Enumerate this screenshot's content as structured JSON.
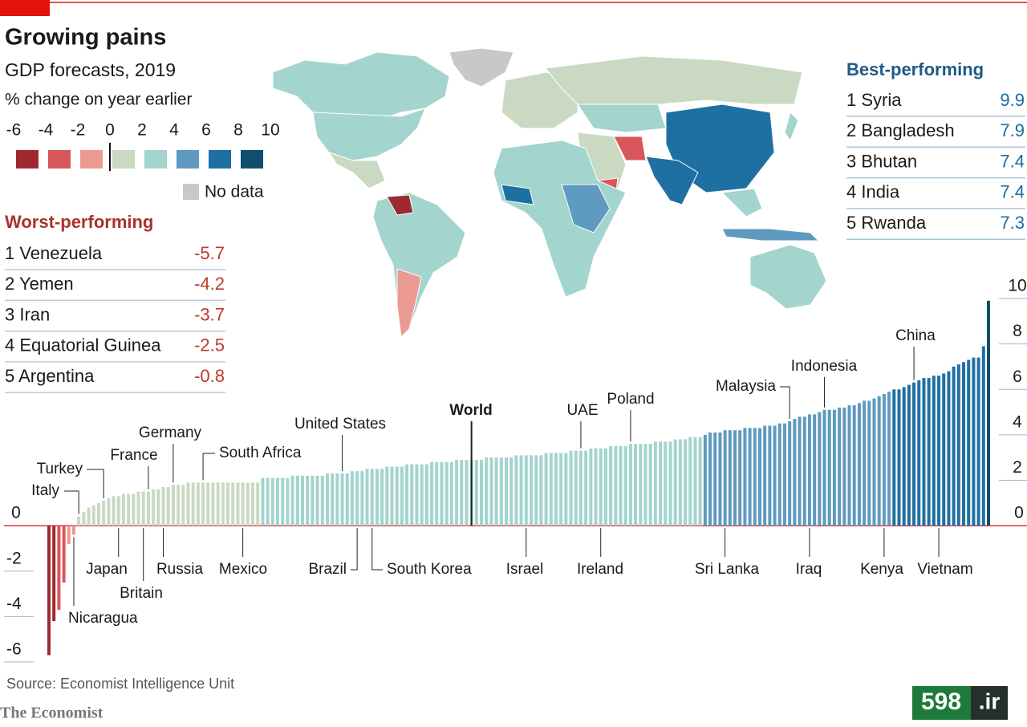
{
  "chart_data": {
    "type": "bar",
    "title": "Growing pains",
    "subtitle": "GDP forecasts, 2019",
    "unit": "% change on year earlier",
    "color_scale": {
      "breaks": [
        -6,
        -4,
        -2,
        0,
        2,
        4,
        6,
        8,
        10
      ],
      "colors": [
        "#9e2a2f",
        "#d9575b",
        "#eb9a92",
        "#c9d9c2",
        "#a3d4cd",
        "#5f9ac0",
        "#1e70a2",
        "#0f4e6d"
      ]
    },
    "no_data": {
      "label": "No data",
      "color": "#c8c8c8"
    },
    "worst": {
      "title": "Worst-performing",
      "color": "#a8322d",
      "rows": [
        {
          "name": "1 Venezuela",
          "value": -5.7
        },
        {
          "name": "2 Yemen",
          "value": -4.2
        },
        {
          "name": "3 Iran",
          "value": -3.7
        },
        {
          "name": "4 Equatorial Guinea",
          "value": -2.5
        },
        {
          "name": "5 Argentina",
          "value": -0.8
        }
      ]
    },
    "best": {
      "title": "Best-performing",
      "color": "#1d5a87",
      "rows": [
        {
          "name": "1 Syria",
          "value": 9.9
        },
        {
          "name": "2 Bangladesh",
          "value": 7.9
        },
        {
          "name": "3 Bhutan",
          "value": 7.4
        },
        {
          "name": "4 India",
          "value": 7.4
        },
        {
          "name": "5 Rwanda",
          "value": 7.3
        }
      ]
    },
    "categories": [
      null,
      null,
      null,
      null,
      null,
      "Nicaragua",
      "Italy",
      null,
      null,
      null,
      null,
      "Turkey",
      null,
      null,
      "Japan",
      null,
      null,
      null,
      null,
      "Britain",
      "France",
      null,
      null,
      "Russia",
      null,
      "Germany",
      null,
      null,
      null,
      null,
      null,
      "South Africa",
      null,
      null,
      null,
      null,
      null,
      null,
      null,
      "Mexico",
      null,
      null,
      null,
      null,
      null,
      null,
      null,
      null,
      null,
      null,
      null,
      null,
      null,
      null,
      null,
      null,
      null,
      null,
      null,
      "United States",
      null,
      null,
      "Brazil",
      null,
      null,
      "South Korea",
      null,
      null,
      null,
      null,
      null,
      null,
      null,
      null,
      null,
      null,
      null,
      null,
      null,
      null,
      null,
      null,
      null,
      null,
      null,
      "World",
      null,
      null,
      null,
      null,
      null,
      null,
      null,
      null,
      null,
      null,
      "Israel",
      null,
      null,
      null,
      null,
      null,
      null,
      null,
      null,
      null,
      null,
      "UAE",
      null,
      null,
      null,
      "Ireland",
      null,
      null,
      null,
      null,
      null,
      "Poland",
      null,
      null,
      null,
      null,
      null,
      null,
      null,
      null,
      null,
      null,
      null,
      null,
      null,
      null,
      null,
      null,
      null,
      null,
      "Sri Lanka",
      null,
      null,
      null,
      null,
      null,
      null,
      null,
      null,
      null,
      null,
      null,
      null,
      "Malaysia",
      null,
      null,
      null,
      "Iraq",
      null,
      null,
      "Indonesia",
      null,
      null,
      null,
      null,
      null,
      null,
      null,
      null,
      null,
      null,
      null,
      "Kenya",
      null,
      null,
      null,
      null,
      null,
      "China",
      null,
      null,
      null,
      null,
      "Vietnam",
      null,
      null,
      null,
      null,
      null,
      null,
      null,
      null,
      null,
      null
    ],
    "values": [
      -5.7,
      -4.2,
      -3.7,
      -2.5,
      -0.8,
      -0.4,
      0.4,
      0.6,
      0.8,
      0.9,
      1.0,
      1.1,
      1.2,
      1.3,
      1.3,
      1.4,
      1.4,
      1.4,
      1.5,
      1.5,
      1.5,
      1.6,
      1.6,
      1.7,
      1.7,
      1.8,
      1.8,
      1.8,
      1.9,
      1.9,
      1.9,
      1.9,
      1.9,
      1.9,
      1.9,
      1.9,
      1.9,
      1.9,
      1.9,
      1.9,
      1.9,
      1.9,
      1.9,
      2.1,
      2.1,
      2.1,
      2.1,
      2.1,
      2.1,
      2.2,
      2.2,
      2.2,
      2.2,
      2.2,
      2.2,
      2.2,
      2.3,
      2.3,
      2.3,
      2.3,
      2.3,
      2.4,
      2.4,
      2.4,
      2.5,
      2.5,
      2.5,
      2.5,
      2.6,
      2.6,
      2.6,
      2.6,
      2.7,
      2.7,
      2.7,
      2.7,
      2.7,
      2.8,
      2.8,
      2.8,
      2.8,
      2.8,
      2.9,
      2.9,
      2.9,
      2.9,
      2.9,
      2.9,
      3.0,
      3.0,
      3.0,
      3.0,
      3.0,
      3.0,
      3.1,
      3.1,
      3.1,
      3.1,
      3.1,
      3.1,
      3.2,
      3.2,
      3.2,
      3.2,
      3.2,
      3.3,
      3.3,
      3.3,
      3.3,
      3.4,
      3.4,
      3.4,
      3.4,
      3.5,
      3.5,
      3.5,
      3.5,
      3.6,
      3.6,
      3.6,
      3.6,
      3.6,
      3.7,
      3.7,
      3.7,
      3.7,
      3.8,
      3.8,
      3.8,
      3.9,
      3.9,
      3.9,
      4.0,
      4.1,
      4.1,
      4.1,
      4.2,
      4.2,
      4.2,
      4.2,
      4.3,
      4.3,
      4.3,
      4.3,
      4.4,
      4.4,
      4.4,
      4.5,
      4.5,
      4.6,
      4.7,
      4.8,
      4.8,
      4.9,
      4.9,
      5.0,
      5.1,
      5.1,
      5.1,
      5.2,
      5.2,
      5.3,
      5.3,
      5.4,
      5.5,
      5.5,
      5.6,
      5.7,
      5.8,
      5.9,
      6.0,
      6.0,
      6.1,
      6.2,
      6.3,
      6.4,
      6.5,
      6.5,
      6.6,
      6.6,
      6.7,
      6.8,
      7.0,
      7.1,
      7.2,
      7.3,
      7.4,
      7.4,
      7.9,
      9.9
    ],
    "ylim": [
      -6,
      10
    ],
    "yticks": [
      -6,
      -4,
      -2,
      0,
      2,
      4,
      6,
      8,
      10
    ],
    "baseline_color": "#d9363e",
    "source": "Source: Economist Intelligence Unit",
    "publisher": "The Economist",
    "watermark": [
      "598",
      ".ir"
    ]
  }
}
